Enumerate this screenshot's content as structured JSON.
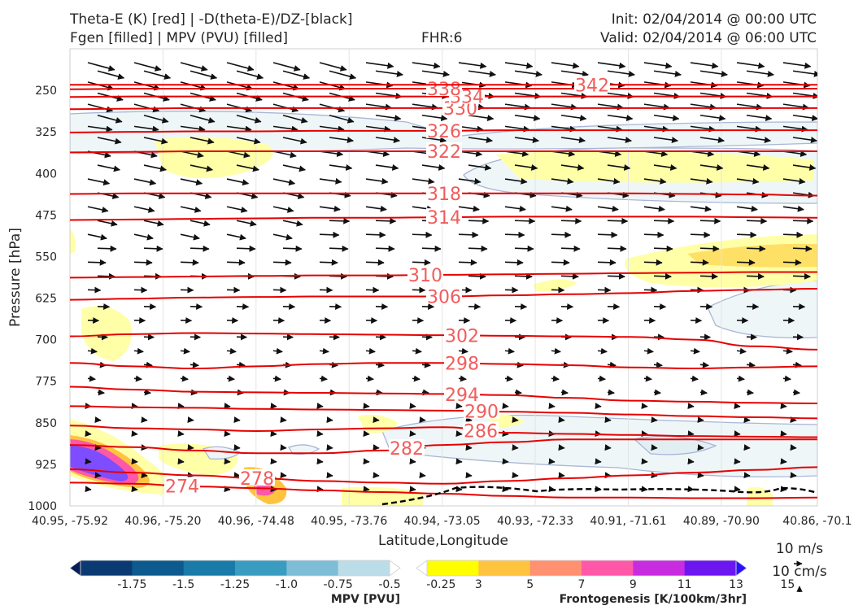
{
  "header": {
    "title_line1": "Theta-E (K) [red] | -D(theta-E)/DZ-[black]",
    "title_line2": "Fgen [filled] | MPV (PVU) [filled]",
    "fhr": "FHR:6",
    "init": "Init: 02/04/2014 @ 00:00 UTC",
    "valid": "Valid: 02/04/2014 @ 06:00 UTC"
  },
  "chart_data": {
    "type": "cross-section",
    "title": "Theta-E (K) [red] | -D(theta-E)/DZ-[black]; Fgen [filled] | MPV (PVU) [filled]",
    "xlabel": "Latitude,Longitude",
    "ylabel": "Pressure [hPa]",
    "ylim": [
      1000,
      175
    ],
    "x_ticks": [
      "40.95, -75.92",
      "40.96, -75.20",
      "40.96, -74.48",
      "40.95, -73.76",
      "40.94, -73.05",
      "40.93, -72.33",
      "40.91, -71.61",
      "40.89, -70.90",
      "40.86, -70.1"
    ],
    "y_ticks": [
      250,
      325,
      400,
      475,
      550,
      625,
      700,
      775,
      850,
      925,
      1000
    ],
    "theta_e_contours": [
      {
        "label": "274",
        "levels": [
          958,
          960,
          965,
          968,
          972,
          975,
          978,
          982,
          985,
          985,
          986,
          986,
          985
        ]
      },
      {
        "label": "278",
        "levels": [
          934,
          940,
          945,
          950,
          955,
          958,
          960,
          955,
          950,
          945,
          940,
          935,
          930
        ]
      },
      {
        "label": "282",
        "levels": [
          890,
          894,
          900,
          905,
          905,
          900,
          890,
          885,
          880,
          880,
          880,
          880,
          880
        ]
      },
      {
        "label": "286",
        "levels": [
          855,
          860,
          862,
          865,
          862,
          860,
          858,
          868,
          870,
          872,
          874,
          875,
          876
        ]
      },
      {
        "label": "290",
        "levels": [
          820,
          822,
          823,
          825,
          826,
          827,
          828,
          830,
          832,
          835,
          838,
          840,
          842
        ]
      },
      {
        "label": "294",
        "levels": [
          785,
          790,
          794,
          795,
          796,
          797,
          798,
          800,
          805,
          810,
          812,
          814,
          815
        ]
      },
      {
        "label": "298",
        "levels": [
          742,
          748,
          752,
          748,
          744,
          742,
          742,
          744,
          746,
          750,
          752,
          750,
          748
        ]
      },
      {
        "label": "302",
        "levels": [
          694,
          690,
          688,
          689,
          690,
          691,
          692,
          693,
          694,
          695,
          700,
          712,
          718
        ]
      },
      {
        "label": "306",
        "levels": [
          628,
          626,
          624,
          623,
          622,
          622,
          622,
          620,
          618,
          616,
          612,
          610,
          608
        ]
      },
      {
        "label": "310",
        "levels": [
          588,
          587,
          586,
          585,
          584,
          584,
          583,
          582,
          581,
          580,
          579,
          578,
          578
        ]
      },
      {
        "label": "314",
        "levels": [
          484,
          483,
          482,
          481,
          480,
          480,
          479,
          478,
          478,
          478,
          478,
          479,
          480
        ]
      },
      {
        "label": "318",
        "levels": [
          437,
          436,
          436,
          436,
          436,
          436,
          436,
          436,
          436,
          436,
          437,
          438,
          440
        ]
      },
      {
        "label": "322",
        "levels": [
          362,
          361,
          360,
          360,
          360,
          360,
          360,
          360,
          360,
          360,
          360,
          360,
          360
        ]
      },
      {
        "label": "326",
        "levels": [
          326,
          325,
          324,
          324,
          323,
          323,
          323,
          322,
          322,
          322,
          322,
          322,
          322
        ]
      },
      {
        "label": "330",
        "levels": [
          284,
          283,
          282,
          282,
          282,
          282,
          282,
          282,
          282,
          282,
          282,
          282,
          282
        ]
      },
      {
        "label": "334",
        "levels": [
          262,
          261,
          261,
          261,
          261,
          261,
          261,
          261,
          261,
          261,
          261,
          261,
          261
        ]
      },
      {
        "label": "338",
        "levels": [
          248,
          247,
          247,
          247,
          247,
          247,
          247,
          247,
          247,
          247,
          247,
          247,
          247
        ]
      },
      {
        "label": "342",
        "levels": [
          240,
          240,
          240,
          240,
          240,
          240,
          240,
          240,
          240,
          240,
          240,
          240,
          240
        ]
      }
    ],
    "mpv_colorbar": {
      "label": "MPV [PVU]",
      "ticks": [
        "-1.75",
        "-1.5",
        "-1.25",
        "-1.0",
        "-0.75",
        "-0.5",
        "-0.25"
      ],
      "colors": [
        "#081d58",
        "#0b3a73",
        "#0d5a8f",
        "#1a7aa8",
        "#3a9cc1",
        "#7dbdd6",
        "#bbdde8",
        "#ffffff"
      ]
    },
    "fgen_colorbar": {
      "label": "Frontogenesis [K/100km/3hr]",
      "ticks": [
        "3",
        "5",
        "7",
        "9",
        "11",
        "13",
        "15"
      ],
      "colors": [
        "#ffffff",
        "#ffff00",
        "#ffc340",
        "#ff9070",
        "#ff58a8",
        "#c82ce0",
        "#6c16f0",
        "#2a12ff"
      ]
    },
    "vector_key": {
      "label1": "10 m/s",
      "label2": "10 cm/s"
    }
  }
}
